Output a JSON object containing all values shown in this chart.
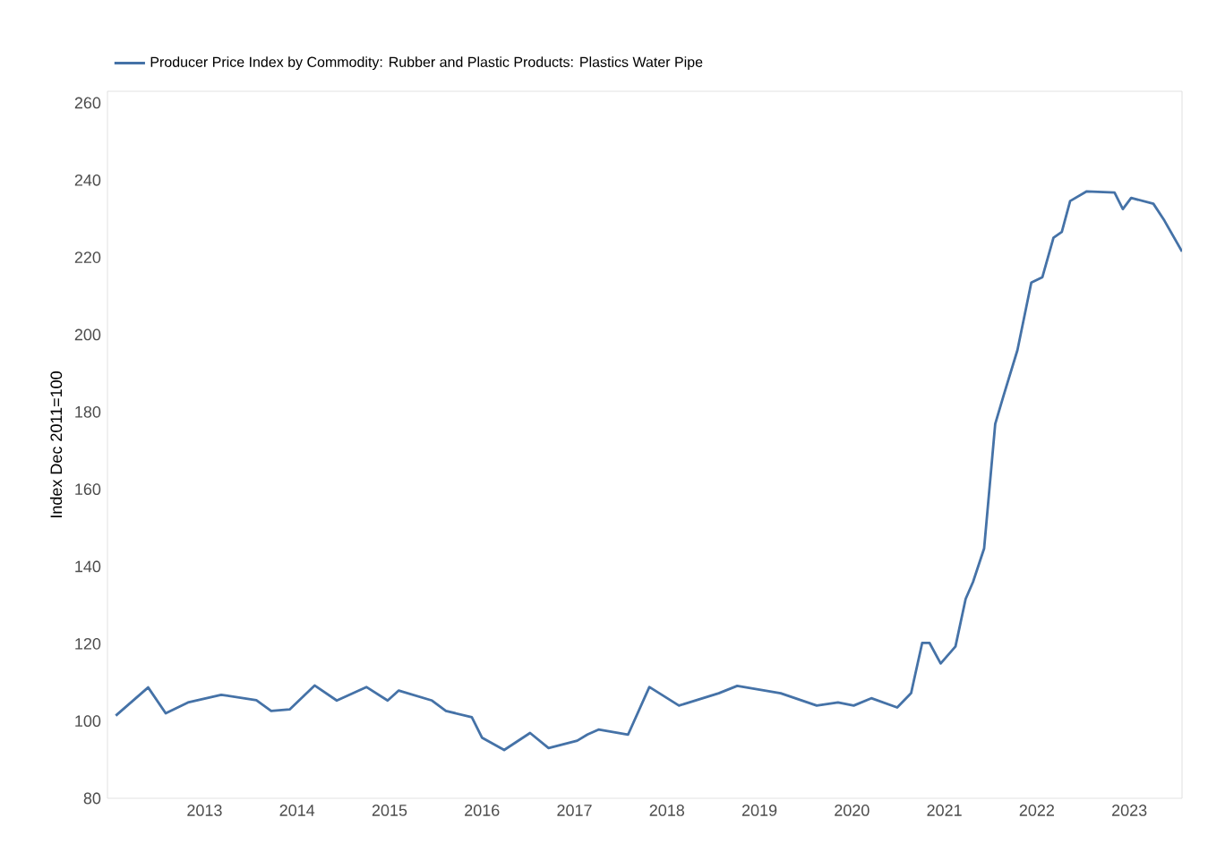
{
  "chart_data": {
    "type": "line",
    "ylabel": "Index Dec 2011=100",
    "legend": "top left",
    "xlim": [
      2011.95,
      2023.57
    ],
    "xticks": [
      2013,
      2014,
      2015,
      2016,
      2017,
      2018,
      2019,
      2020,
      2021,
      2022,
      2023
    ],
    "ylim": [
      80,
      263
    ],
    "yticks": [
      80,
      100,
      120,
      140,
      160,
      180,
      200,
      220,
      240,
      260
    ],
    "series": [
      {
        "name": "Producer Price Index by Commodity: Rubber and Plastic Products: Plastics Water Pipe",
        "color": "#4572a7",
        "x": [
          2012.04,
          2012.39,
          2012.58,
          2012.82,
          2013.18,
          2013.56,
          2013.72,
          2013.92,
          2014.19,
          2014.43,
          2014.75,
          2014.98,
          2015.1,
          2015.46,
          2015.61,
          2015.89,
          2016.0,
          2016.24,
          2016.52,
          2016.72,
          2017.03,
          2017.14,
          2017.26,
          2017.58,
          2017.81,
          2018.13,
          2018.56,
          2018.76,
          2019.23,
          2019.62,
          2019.85,
          2020.02,
          2020.21,
          2020.49,
          2020.64,
          2020.76,
          2020.84,
          2020.96,
          2021.12,
          2021.23,
          2021.31,
          2021.43,
          2021.55,
          2021.64,
          2021.79,
          2021.94,
          2022.06,
          2022.18,
          2022.27,
          2022.36,
          2022.54,
          2022.84,
          2022.93,
          2023.02,
          2023.26,
          2023.38,
          2023.57
        ],
        "values": [
          101.4,
          108.7,
          102,
          104.8,
          106.8,
          105.4,
          102.6,
          103,
          109.2,
          105.3,
          108.8,
          105.3,
          107.9,
          105.3,
          102.6,
          101,
          95.7,
          92.5,
          96.9,
          93,
          94.9,
          96.5,
          97.8,
          96.5,
          108.8,
          104,
          107.2,
          109.1,
          107.2,
          104,
          104.8,
          104,
          105.9,
          103.5,
          107.2,
          120.2,
          120.2,
          114.9,
          119.3,
          131.6,
          136,
          144.7,
          176.9,
          184.2,
          196,
          213.5,
          214.9,
          225.1,
          226.6,
          234.6,
          237.1,
          236.8,
          232.5,
          235.4,
          233.9,
          229.5,
          221.5
        ]
      }
    ]
  }
}
